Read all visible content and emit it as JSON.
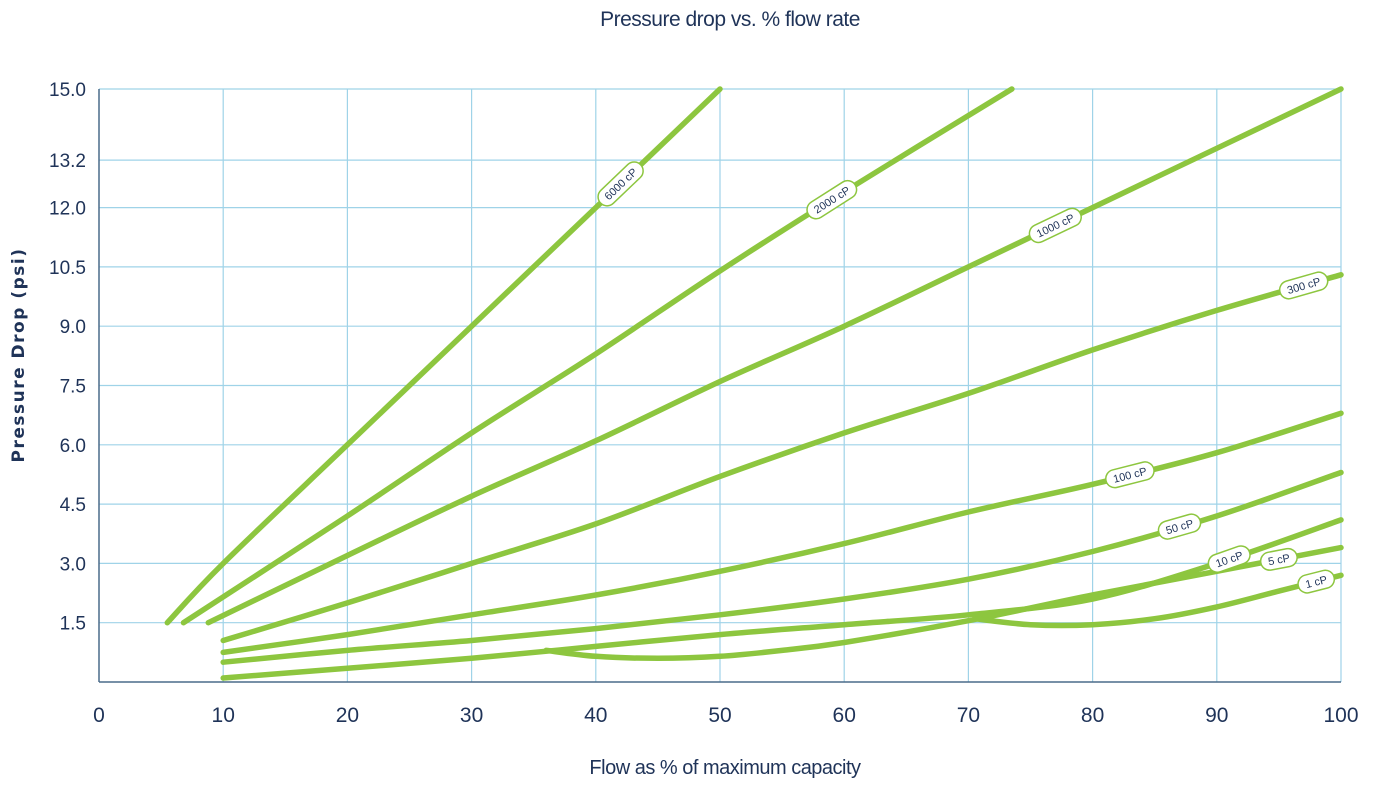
{
  "chart_data": {
    "type": "line",
    "title": "Pressure drop vs. % flow rate",
    "xlabel": "Flow as % of maximum capacity",
    "ylabel": "Pressure Drop (psi)",
    "xlim": [
      0,
      100
    ],
    "ylim": [
      0,
      15
    ],
    "x_ticks": [
      "0",
      "10",
      "20",
      "30",
      "40",
      "50",
      "60",
      "70",
      "80",
      "90",
      "100"
    ],
    "y_ticks": [
      {
        "value": 1.5,
        "label": "1.5"
      },
      {
        "value": 3.0,
        "label": "3.0"
      },
      {
        "value": 4.5,
        "label": "4.5"
      },
      {
        "value": 6.0,
        "label": "6.0"
      },
      {
        "value": 7.5,
        "label": "7.5"
      },
      {
        "value": 9.0,
        "label": "9.0"
      },
      {
        "value": 10.5,
        "label": "10.5"
      },
      {
        "value": 12.0,
        "label": "12.0"
      },
      {
        "value": 13.2,
        "label": "13.2"
      },
      {
        "value": 15.0,
        "label": "15.0"
      }
    ],
    "grid": true,
    "line_color": "#8dc63f",
    "grid_color": "#9fd3e8",
    "series": [
      {
        "name": "6000 cP",
        "x": [
          5.5,
          10,
          20,
          30,
          40,
          50
        ],
        "y": [
          1.5,
          3.0,
          6.0,
          9.0,
          12.0,
          15.0
        ],
        "label_at": 42
      },
      {
        "name": "2000 cP",
        "x": [
          6.8,
          20,
          30,
          40,
          50,
          60,
          73.5
        ],
        "y": [
          1.5,
          4.2,
          6.3,
          8.3,
          10.4,
          12.4,
          15.0
        ],
        "label_at": 59
      },
      {
        "name": "1000 cP",
        "x": [
          8.8,
          20,
          30,
          40,
          50,
          60,
          70,
          80,
          90,
          100
        ],
        "y": [
          1.5,
          3.2,
          4.7,
          6.1,
          7.6,
          9.0,
          10.5,
          12.0,
          13.5,
          15.0
        ],
        "label_at": 77
      },
      {
        "name": "300 cP",
        "x": [
          10,
          20,
          30,
          40,
          50,
          60,
          70,
          80,
          90,
          100
        ],
        "y": [
          1.05,
          2.0,
          3.0,
          4.0,
          5.2,
          6.3,
          7.3,
          8.4,
          9.4,
          10.3
        ],
        "label_at": 97
      },
      {
        "name": "100 cP",
        "x": [
          10,
          20,
          30,
          40,
          50,
          60,
          70,
          80,
          90,
          100
        ],
        "y": [
          0.75,
          1.2,
          1.7,
          2.2,
          2.8,
          3.5,
          4.3,
          5.0,
          5.8,
          6.8
        ],
        "label_at": 83
      },
      {
        "name": "50 cP",
        "x": [
          10,
          20,
          30,
          40,
          50,
          60,
          70,
          80,
          90,
          100
        ],
        "y": [
          0.5,
          0.8,
          1.05,
          1.35,
          1.7,
          2.1,
          2.6,
          3.3,
          4.2,
          5.3
        ],
        "label_at": 87
      },
      {
        "name": "10 cP",
        "x": [
          10,
          20,
          30,
          40,
          50,
          60,
          70,
          80,
          90,
          100
        ],
        "y": [
          0.1,
          0.35,
          0.6,
          0.9,
          1.2,
          1.45,
          1.7,
          2.1,
          3.0,
          4.1
        ],
        "label_at": 91
      },
      {
        "name": "5 cP",
        "x": [
          36,
          40,
          45,
          50,
          55,
          60,
          70,
          80,
          90,
          100
        ],
        "y": [
          0.8,
          0.65,
          0.6,
          0.65,
          0.8,
          1.0,
          1.55,
          2.2,
          2.8,
          3.4
        ],
        "label_at": 95
      },
      {
        "name": "1 cP",
        "x": [
          70.5,
          75,
          80,
          85,
          90,
          95,
          100
        ],
        "y": [
          1.6,
          1.45,
          1.45,
          1.6,
          1.9,
          2.3,
          2.7
        ],
        "label_at": 98
      }
    ]
  }
}
